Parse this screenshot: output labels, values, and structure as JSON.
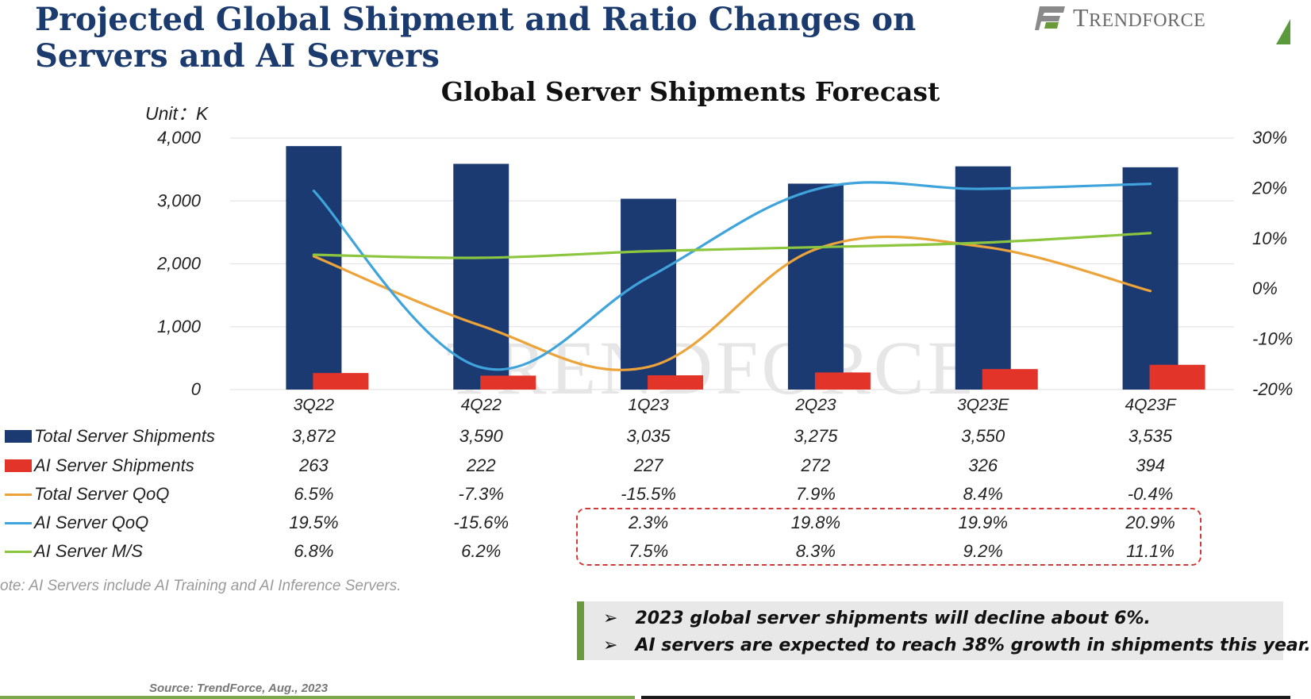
{
  "header": {
    "title": "Projected Global Shipment and Ratio Changes on Servers and AI Servers",
    "logo_text": "TrendForce",
    "logo_icon": "trendforce-logo-icon",
    "logo_colors": [
      "#8a8a8a",
      "#6a9a3a"
    ]
  },
  "chart_data": {
    "type": "bar",
    "title": "Global Server Shipments Forecast",
    "unit_label": "Unit：K",
    "categories": [
      "3Q22",
      "4Q22",
      "1Q23",
      "2Q23",
      "3Q23E",
      "4Q23F"
    ],
    "y_left": {
      "lim": [
        0,
        4000
      ],
      "ticks": [
        "4,000",
        "3,000",
        "2,000",
        "1,000",
        "0"
      ]
    },
    "y_right": {
      "lim": [
        -20,
        30
      ],
      "ticks": [
        "30%",
        "20%",
        "10%",
        "0%",
        "-10%",
        "-20%"
      ]
    },
    "grid": true,
    "series": [
      {
        "name": "Total Server Shipments",
        "kind": "bar",
        "axis": "left",
        "color": "#1b3a72",
        "values": [
          3872,
          3590,
          3035,
          3275,
          3550,
          3535
        ],
        "labels": [
          "3,872",
          "3,590",
          "3,035",
          "3,275",
          "3,550",
          "3,535"
        ]
      },
      {
        "name": "AI Server Shipments",
        "kind": "bar",
        "axis": "left",
        "color": "#e3342a",
        "values": [
          263,
          222,
          227,
          272,
          326,
          394
        ],
        "labels": [
          "263",
          "222",
          "227",
          "272",
          "326",
          "394"
        ]
      },
      {
        "name": "Total Server QoQ",
        "kind": "line",
        "axis": "right",
        "color": "#eca33a",
        "values": [
          6.5,
          -7.3,
          -15.5,
          7.9,
          8.4,
          -0.4
        ],
        "labels": [
          "6.5%",
          "-7.3%",
          "-15.5%",
          "7.9%",
          "8.4%",
          "-0.4%"
        ]
      },
      {
        "name": "AI Server QoQ",
        "kind": "line",
        "axis": "right",
        "color": "#3fa4dc",
        "values": [
          19.5,
          -15.6,
          2.3,
          19.8,
          19.9,
          20.9
        ],
        "labels": [
          "19.5%",
          "-15.6%",
          "2.3%",
          "19.8%",
          "19.9%",
          "20.9%"
        ]
      },
      {
        "name": "AI Server M/S",
        "kind": "line",
        "axis": "right",
        "color": "#8cc63f",
        "values": [
          6.8,
          6.2,
          7.5,
          8.3,
          9.2,
          11.1
        ],
        "labels": [
          "6.8%",
          "6.2%",
          "7.5%",
          "8.3%",
          "9.2%",
          "11.1%"
        ]
      }
    ],
    "watermark": "TRENDFORCE"
  },
  "note": "ote: AI Servers include AI Training and AI Inference Servers.",
  "callout": {
    "bullet": "➢",
    "lines": [
      "2023 global server shipments will decline about 6%.",
      "AI servers are expected to reach 38% growth in shipments this year."
    ]
  },
  "source": "Source: TrendForce, Aug., 2023"
}
